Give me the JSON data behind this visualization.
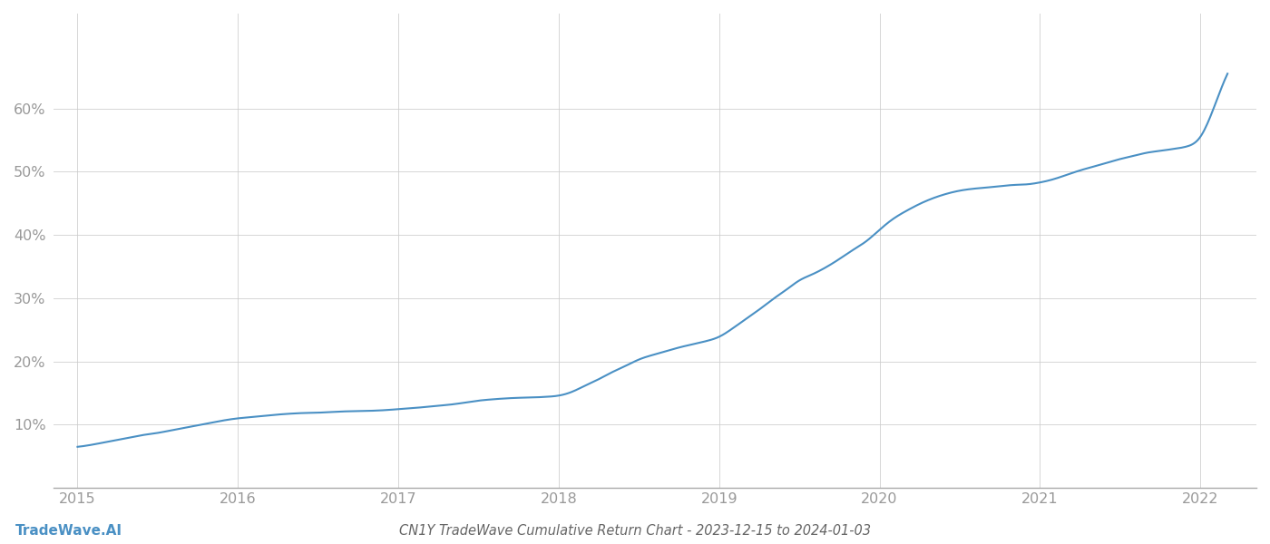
{
  "title": "CN1Y TradeWave Cumulative Return Chart - 2023-12-15 to 2024-01-03",
  "watermark": "TradeWave.AI",
  "line_color": "#4a90c4",
  "background_color": "#ffffff",
  "grid_color": "#cccccc",
  "x_years": [
    2015,
    2016,
    2017,
    2018,
    2019,
    2020,
    2021,
    2022
  ],
  "x_values": [
    2015.0,
    2015.083,
    2015.167,
    2015.25,
    2015.333,
    2015.417,
    2015.5,
    2015.583,
    2015.667,
    2015.75,
    2015.833,
    2015.917,
    2016.0,
    2016.083,
    2016.167,
    2016.25,
    2016.333,
    2016.417,
    2016.5,
    2016.583,
    2016.667,
    2016.75,
    2016.833,
    2016.917,
    2017.0,
    2017.083,
    2017.167,
    2017.25,
    2017.333,
    2017.417,
    2017.5,
    2017.583,
    2017.667,
    2017.75,
    2017.833,
    2017.917,
    2018.0,
    2018.083,
    2018.167,
    2018.25,
    2018.333,
    2018.417,
    2018.5,
    2018.583,
    2018.667,
    2018.75,
    2018.833,
    2018.917,
    2019.0,
    2019.083,
    2019.167,
    2019.25,
    2019.333,
    2019.417,
    2019.5,
    2019.583,
    2019.667,
    2019.75,
    2019.833,
    2019.917,
    2020.0,
    2020.083,
    2020.167,
    2020.25,
    2020.333,
    2020.417,
    2020.5,
    2020.583,
    2020.667,
    2020.75,
    2020.833,
    2020.917,
    2021.0,
    2021.083,
    2021.167,
    2021.25,
    2021.333,
    2021.417,
    2021.5,
    2021.583,
    2021.667,
    2021.75,
    2021.833,
    2021.917,
    2022.0,
    2022.083,
    2022.17
  ],
  "y_values": [
    6.5,
    6.8,
    7.2,
    7.6,
    8.0,
    8.4,
    8.7,
    9.1,
    9.5,
    9.9,
    10.3,
    10.7,
    11.0,
    11.2,
    11.4,
    11.6,
    11.75,
    11.85,
    11.9,
    12.0,
    12.1,
    12.15,
    12.2,
    12.3,
    12.45,
    12.6,
    12.8,
    13.0,
    13.2,
    13.5,
    13.8,
    14.0,
    14.15,
    14.25,
    14.3,
    14.4,
    14.6,
    15.2,
    16.2,
    17.2,
    18.3,
    19.3,
    20.3,
    21.0,
    21.6,
    22.2,
    22.7,
    23.2,
    23.9,
    25.2,
    26.7,
    28.2,
    29.8,
    31.3,
    32.8,
    33.8,
    34.9,
    36.2,
    37.6,
    39.0,
    40.8,
    42.5,
    43.8,
    44.9,
    45.8,
    46.5,
    47.0,
    47.3,
    47.5,
    47.7,
    47.9,
    48.0,
    48.3,
    48.8,
    49.5,
    50.2,
    50.8,
    51.4,
    52.0,
    52.5,
    53.0,
    53.3,
    53.6,
    54.0,
    55.5,
    60.0,
    65.5
  ],
  "ylim": [
    0,
    75
  ],
  "yticks": [
    10,
    20,
    30,
    40,
    50,
    60
  ],
  "xlim": [
    2014.85,
    2022.35
  ],
  "title_fontsize": 10.5,
  "tick_fontsize": 11.5,
  "watermark_fontsize": 11,
  "axis_color": "#aaaaaa",
  "title_color": "#666666",
  "tick_color": "#999999"
}
